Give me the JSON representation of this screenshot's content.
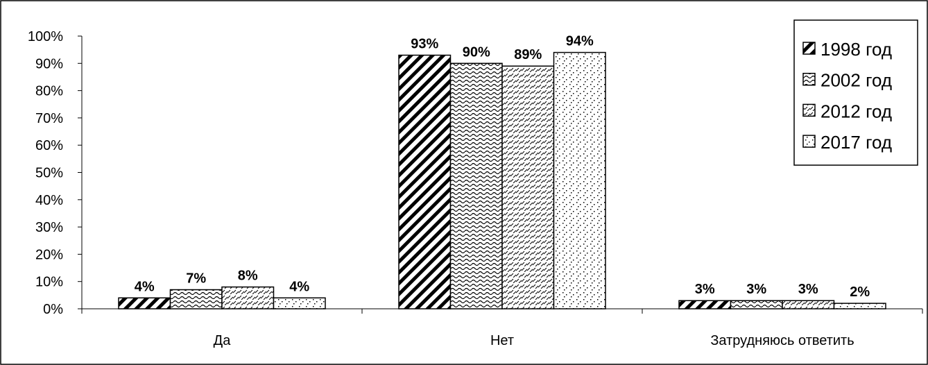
{
  "chart_data": {
    "type": "bar",
    "title": "",
    "xlabel": "",
    "ylabel": "",
    "ylim": [
      0,
      100
    ],
    "y_ticks": [
      "0%",
      "10%",
      "20%",
      "30%",
      "40%",
      "50%",
      "60%",
      "70%",
      "80%",
      "90%",
      "100%"
    ],
    "grid": false,
    "legend_position": "top-right",
    "categories": [
      "Да",
      "Нет",
      "Затрудняюсь ответить"
    ],
    "series": [
      {
        "name": "1998 год",
        "values": [
          4,
          93,
          3
        ],
        "labels": [
          "4%",
          "93%",
          "3%"
        ],
        "pattern": "diagonal-thick"
      },
      {
        "name": "2002 год",
        "values": [
          7,
          90,
          3
        ],
        "labels": [
          "7%",
          "90%",
          "3%"
        ],
        "pattern": "wave"
      },
      {
        "name": "2012 год",
        "values": [
          8,
          89,
          3
        ],
        "labels": [
          "8%",
          "89%",
          "3%"
        ],
        "pattern": "dashed-diagonal"
      },
      {
        "name": "2017 год",
        "values": [
          4,
          94,
          2
        ],
        "labels": [
          "4%",
          "94%",
          "2%"
        ],
        "pattern": "dots"
      }
    ]
  }
}
